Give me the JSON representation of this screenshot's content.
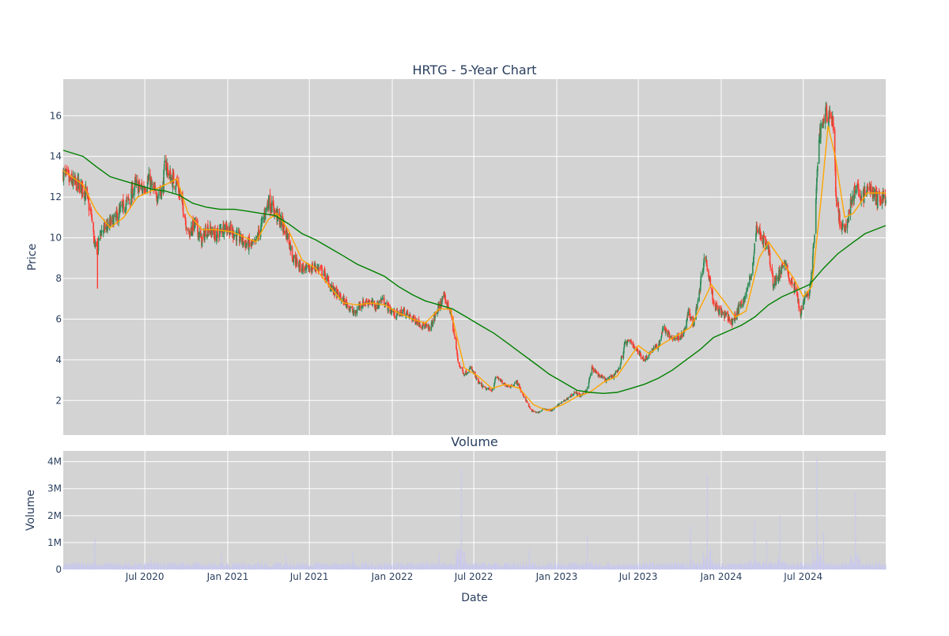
{
  "chart_data": [
    {
      "type": "candlestick",
      "title": "HRTG - 5-Year Chart",
      "xlabel": "",
      "ylabel": "Price",
      "ylim": [
        0.3,
        17.8
      ],
      "yticks": [
        2,
        4,
        6,
        8,
        10,
        12,
        14,
        16
      ],
      "grid": true,
      "up_color": "#2e8b57",
      "down_color": "#ff3b30",
      "background": "#d3d3d3",
      "price_anchors": [
        [
          "2020-01-02",
          13.2
        ],
        [
          "2020-01-15",
          12.8
        ],
        [
          "2020-02-05",
          12.6
        ],
        [
          "2020-02-20",
          12.3
        ],
        [
          "2020-03-05",
          11.0
        ],
        [
          "2020-03-12",
          9.5
        ],
        [
          "2020-03-18",
          9.4
        ],
        [
          "2020-03-25",
          10.3
        ],
        [
          "2020-04-10",
          10.6
        ],
        [
          "2020-04-25",
          10.9
        ],
        [
          "2020-05-10",
          11.4
        ],
        [
          "2020-05-25",
          11.8
        ],
        [
          "2020-06-10",
          12.6
        ],
        [
          "2020-06-25",
          12.4
        ],
        [
          "2020-07-10",
          12.8
        ],
        [
          "2020-07-25",
          12.1
        ],
        [
          "2020-08-10",
          12.4
        ],
        [
          "2020-08-15",
          13.8
        ],
        [
          "2020-08-25",
          13.0
        ],
        [
          "2020-09-10",
          12.7
        ],
        [
          "2020-09-25",
          11.4
        ],
        [
          "2020-10-05",
          10.2
        ],
        [
          "2020-10-20",
          10.7
        ],
        [
          "2020-11-05",
          9.8
        ],
        [
          "2020-11-15",
          10.5
        ],
        [
          "2020-12-05",
          10.1
        ],
        [
          "2020-12-25",
          10.6
        ],
        [
          "2021-01-10",
          10.3
        ],
        [
          "2021-02-10",
          9.7
        ],
        [
          "2021-03-01",
          9.6
        ],
        [
          "2021-03-15",
          10.5
        ],
        [
          "2021-04-01",
          11.8
        ],
        [
          "2021-04-15",
          11.3
        ],
        [
          "2021-05-01",
          10.7
        ],
        [
          "2021-05-15",
          10.0
        ],
        [
          "2021-05-25",
          9.1
        ],
        [
          "2021-06-10",
          8.6
        ],
        [
          "2021-06-25",
          8.4
        ],
        [
          "2021-07-15",
          8.6
        ],
        [
          "2021-08-01",
          8.3
        ],
        [
          "2021-08-20",
          7.5
        ],
        [
          "2021-09-10",
          7.0
        ],
        [
          "2021-09-25",
          6.7
        ],
        [
          "2021-10-10",
          6.2
        ],
        [
          "2021-10-20",
          6.7
        ],
        [
          "2021-11-10",
          6.9
        ],
        [
          "2021-11-25",
          6.6
        ],
        [
          "2021-12-10",
          7.0
        ],
        [
          "2021-12-25",
          6.5
        ],
        [
          "2022-01-10",
          6.2
        ],
        [
          "2022-01-25",
          6.4
        ],
        [
          "2022-02-10",
          6.1
        ],
        [
          "2022-02-25",
          5.9
        ],
        [
          "2022-03-10",
          5.7
        ],
        [
          "2022-03-25",
          5.5
        ],
        [
          "2022-04-10",
          6.4
        ],
        [
          "2022-04-25",
          7.1
        ],
        [
          "2022-05-10",
          6.4
        ],
        [
          "2022-05-20",
          5.0
        ],
        [
          "2022-05-28",
          3.8
        ],
        [
          "2022-06-10",
          3.3
        ],
        [
          "2022-06-25",
          3.6
        ],
        [
          "2022-07-10",
          2.9
        ],
        [
          "2022-07-25",
          2.6
        ],
        [
          "2022-08-10",
          2.5
        ],
        [
          "2022-08-20",
          3.2
        ],
        [
          "2022-09-05",
          2.8
        ],
        [
          "2022-09-20",
          2.7
        ],
        [
          "2022-10-05",
          2.9
        ],
        [
          "2022-10-15",
          2.4
        ],
        [
          "2022-10-25",
          2.0
        ],
        [
          "2022-11-05",
          1.5
        ],
        [
          "2022-11-20",
          1.4
        ],
        [
          "2022-12-05",
          1.6
        ],
        [
          "2022-12-20",
          1.5
        ],
        [
          "2023-01-05",
          1.8
        ],
        [
          "2023-01-25",
          2.1
        ],
        [
          "2023-02-10",
          2.4
        ],
        [
          "2023-02-25",
          2.2
        ],
        [
          "2023-03-10",
          2.6
        ],
        [
          "2023-03-20",
          3.6
        ],
        [
          "2023-04-01",
          3.3
        ],
        [
          "2023-04-20",
          3.0
        ],
        [
          "2023-05-05",
          3.2
        ],
        [
          "2023-05-20",
          3.6
        ],
        [
          "2023-06-01",
          4.8
        ],
        [
          "2023-06-15",
          4.9
        ],
        [
          "2023-06-30",
          4.4
        ],
        [
          "2023-07-15",
          4.0
        ],
        [
          "2023-08-01",
          4.5
        ],
        [
          "2023-08-15",
          4.7
        ],
        [
          "2023-08-25",
          5.6
        ],
        [
          "2023-09-10",
          5.1
        ],
        [
          "2023-09-25",
          5.1
        ],
        [
          "2023-10-10",
          5.3
        ],
        [
          "2023-10-20",
          6.3
        ],
        [
          "2023-11-01",
          5.8
        ],
        [
          "2023-11-15",
          7.6
        ],
        [
          "2023-11-25",
          9.2
        ],
        [
          "2023-12-05",
          8.2
        ],
        [
          "2023-12-15",
          6.8
        ],
        [
          "2024-01-01",
          6.3
        ],
        [
          "2024-01-15",
          6.1
        ],
        [
          "2024-01-25",
          5.8
        ],
        [
          "2024-02-10",
          6.6
        ],
        [
          "2024-02-25",
          7.2
        ],
        [
          "2024-03-10",
          8.5
        ],
        [
          "2024-03-20",
          10.6
        ],
        [
          "2024-04-01",
          10.0
        ],
        [
          "2024-04-15",
          9.4
        ],
        [
          "2024-04-25",
          7.8
        ],
        [
          "2024-05-10",
          8.2
        ],
        [
          "2024-05-20",
          9.0
        ],
        [
          "2024-06-01",
          7.9
        ],
        [
          "2024-06-15",
          7.4
        ],
        [
          "2024-06-25",
          6.3
        ],
        [
          "2024-07-05",
          7.2
        ],
        [
          "2024-07-15",
          7.3
        ],
        [
          "2024-07-25",
          9.8
        ],
        [
          "2024-08-05",
          15.0
        ],
        [
          "2024-08-15",
          15.9
        ],
        [
          "2024-08-25",
          16.2
        ],
        [
          "2024-09-05",
          15.8
        ],
        [
          "2024-09-12",
          12.0
        ],
        [
          "2024-09-20",
          10.8
        ],
        [
          "2024-10-01",
          10.2
        ],
        [
          "2024-10-15",
          11.8
        ],
        [
          "2024-10-25",
          12.4
        ],
        [
          "2024-11-10",
          12.0
        ],
        [
          "2024-11-25",
          12.5
        ],
        [
          "2024-12-10",
          11.9
        ],
        [
          "2024-12-31",
          12.0
        ]
      ],
      "ma_short": {
        "color": "#ffa500",
        "points": [
          [
            "2020-01-02",
            13.3
          ],
          [
            "2020-02-15",
            12.6
          ],
          [
            "2020-03-15",
            11.3
          ],
          [
            "2020-04-15",
            10.5
          ],
          [
            "2020-05-15",
            11.0
          ],
          [
            "2020-06-15",
            12.0
          ],
          [
            "2020-07-15",
            12.3
          ],
          [
            "2020-08-15",
            12.6
          ],
          [
            "2020-09-10",
            12.9
          ],
          [
            "2020-10-05",
            11.2
          ],
          [
            "2020-11-05",
            10.4
          ],
          [
            "2020-12-05",
            10.4
          ],
          [
            "2021-01-10",
            10.3
          ],
          [
            "2021-02-10",
            10.0
          ],
          [
            "2021-03-05",
            9.8
          ],
          [
            "2021-04-01",
            10.9
          ],
          [
            "2021-04-20",
            11.2
          ],
          [
            "2021-05-15",
            10.4
          ],
          [
            "2021-06-15",
            8.9
          ],
          [
            "2021-07-15",
            8.5
          ],
          [
            "2021-08-15",
            7.6
          ],
          [
            "2021-09-15",
            6.8
          ],
          [
            "2021-10-15",
            6.7
          ],
          [
            "2021-11-15",
            6.8
          ],
          [
            "2021-12-15",
            6.7
          ],
          [
            "2022-01-15",
            6.3
          ],
          [
            "2022-02-15",
            6.0
          ],
          [
            "2022-03-15",
            5.8
          ],
          [
            "2022-04-15",
            6.5
          ],
          [
            "2022-05-10",
            6.5
          ],
          [
            "2022-06-10",
            3.6
          ],
          [
            "2022-07-10",
            3.2
          ],
          [
            "2022-08-10",
            2.6
          ],
          [
            "2022-09-10",
            2.8
          ],
          [
            "2022-10-10",
            2.6
          ],
          [
            "2022-11-10",
            1.8
          ],
          [
            "2022-12-10",
            1.5
          ],
          [
            "2023-01-15",
            1.8
          ],
          [
            "2023-02-15",
            2.2
          ],
          [
            "2023-03-15",
            2.4
          ],
          [
            "2023-04-15",
            2.9
          ],
          [
            "2023-05-15",
            3.2
          ],
          [
            "2023-06-15",
            4.2
          ],
          [
            "2023-07-01",
            4.7
          ],
          [
            "2023-07-25",
            4.3
          ],
          [
            "2023-08-25",
            4.8
          ],
          [
            "2023-09-25",
            5.2
          ],
          [
            "2023-10-25",
            5.6
          ],
          [
            "2023-11-25",
            7.0
          ],
          [
            "2023-12-10",
            7.7
          ],
          [
            "2024-01-10",
            6.8
          ],
          [
            "2024-02-01",
            6.1
          ],
          [
            "2024-02-25",
            6.4
          ],
          [
            "2024-03-25",
            9.0
          ],
          [
            "2024-04-15",
            9.8
          ],
          [
            "2024-05-10",
            9.0
          ],
          [
            "2024-06-10",
            8.0
          ],
          [
            "2024-07-01",
            7.1
          ],
          [
            "2024-07-20",
            7.6
          ],
          [
            "2024-08-10",
            12.0
          ],
          [
            "2024-08-25",
            15.5
          ],
          [
            "2024-09-10",
            14.0
          ],
          [
            "2024-10-01",
            11.0
          ],
          [
            "2024-10-20",
            11.2
          ],
          [
            "2024-11-20",
            12.2
          ],
          [
            "2024-12-31",
            12.2
          ]
        ]
      },
      "ma_long": {
        "color": "#008000",
        "points": [
          [
            "2020-01-02",
            14.3
          ],
          [
            "2020-02-15",
            14.0
          ],
          [
            "2020-03-15",
            13.5
          ],
          [
            "2020-04-15",
            13.0
          ],
          [
            "2020-05-15",
            12.8
          ],
          [
            "2020-06-15",
            12.6
          ],
          [
            "2020-07-15",
            12.4
          ],
          [
            "2020-08-15",
            12.3
          ],
          [
            "2020-09-15",
            12.1
          ],
          [
            "2020-10-15",
            11.7
          ],
          [
            "2020-11-15",
            11.5
          ],
          [
            "2020-12-15",
            11.4
          ],
          [
            "2021-01-15",
            11.4
          ],
          [
            "2021-02-15",
            11.3
          ],
          [
            "2021-03-15",
            11.2
          ],
          [
            "2021-04-15",
            11.1
          ],
          [
            "2021-05-15",
            10.7
          ],
          [
            "2021-06-15",
            10.2
          ],
          [
            "2021-07-15",
            9.9
          ],
          [
            "2021-08-15",
            9.5
          ],
          [
            "2021-09-15",
            9.1
          ],
          [
            "2021-10-15",
            8.7
          ],
          [
            "2021-11-15",
            8.4
          ],
          [
            "2021-12-15",
            8.1
          ],
          [
            "2022-01-15",
            7.6
          ],
          [
            "2022-02-15",
            7.2
          ],
          [
            "2022-03-15",
            6.9
          ],
          [
            "2022-04-15",
            6.7
          ],
          [
            "2022-05-15",
            6.5
          ],
          [
            "2022-06-15",
            6.1
          ],
          [
            "2022-07-15",
            5.7
          ],
          [
            "2022-08-15",
            5.3
          ],
          [
            "2022-09-15",
            4.8
          ],
          [
            "2022-10-15",
            4.3
          ],
          [
            "2022-11-15",
            3.8
          ],
          [
            "2022-12-15",
            3.3
          ],
          [
            "2023-01-15",
            2.9
          ],
          [
            "2023-02-15",
            2.5
          ],
          [
            "2023-03-15",
            2.4
          ],
          [
            "2023-04-15",
            2.35
          ],
          [
            "2023-05-15",
            2.4
          ],
          [
            "2023-06-15",
            2.6
          ],
          [
            "2023-07-15",
            2.8
          ],
          [
            "2023-08-15",
            3.1
          ],
          [
            "2023-09-15",
            3.5
          ],
          [
            "2023-10-15",
            4.0
          ],
          [
            "2023-11-15",
            4.5
          ],
          [
            "2023-12-15",
            5.1
          ],
          [
            "2024-01-15",
            5.4
          ],
          [
            "2024-02-15",
            5.7
          ],
          [
            "2024-03-15",
            6.1
          ],
          [
            "2024-04-15",
            6.7
          ],
          [
            "2024-05-15",
            7.1
          ],
          [
            "2024-06-15",
            7.4
          ],
          [
            "2024-07-15",
            7.7
          ],
          [
            "2024-08-15",
            8.5
          ],
          [
            "2024-09-15",
            9.2
          ],
          [
            "2024-10-15",
            9.7
          ],
          [
            "2024-11-15",
            10.2
          ],
          [
            "2024-12-31",
            10.6
          ]
        ]
      }
    },
    {
      "type": "bar",
      "title": "Volume",
      "xlabel": "Date",
      "ylabel": "Volume",
      "ylim": [
        0,
        4400000
      ],
      "yticks": [
        0,
        1000000,
        2000000,
        3000000,
        4000000
      ],
      "ytick_labels": [
        "0",
        "1M",
        "2M",
        "3M",
        "4M"
      ],
      "bar_color": "#c8c8ee",
      "baseline_volume": 180000,
      "spikes": [
        [
          "2020-03-12",
          1200000
        ],
        [
          "2020-07-15",
          400000
        ],
        [
          "2020-12-18",
          600000
        ],
        [
          "2021-05-10",
          550000
        ],
        [
          "2021-10-05",
          650000
        ],
        [
          "2022-04-15",
          600000
        ],
        [
          "2022-06-03",
          3750000
        ],
        [
          "2022-07-10",
          650000
        ],
        [
          "2022-11-01",
          750000
        ],
        [
          "2023-03-10",
          1250000
        ],
        [
          "2023-10-25",
          1600000
        ],
        [
          "2023-12-01",
          3500000
        ],
        [
          "2024-03-15",
          1800000
        ],
        [
          "2024-04-10",
          1100000
        ],
        [
          "2024-05-10",
          2000000
        ],
        [
          "2024-07-31",
          4150000
        ],
        [
          "2024-08-15",
          1400000
        ],
        [
          "2024-10-25",
          2850000
        ],
        [
          "2024-11-10",
          900000
        ]
      ],
      "x_tick_dates": [
        "2020-07-01",
        "2021-01-01",
        "2021-07-01",
        "2022-01-01",
        "2022-07-01",
        "2023-01-01",
        "2023-07-01",
        "2024-01-01",
        "2024-07-01"
      ],
      "x_tick_labels": [
        "Jul 2020",
        "Jan 2021",
        "Jul 2021",
        "Jan 2022",
        "Jul 2022",
        "Jan 2023",
        "Jul 2023",
        "Jan 2024",
        "Jul 2024"
      ],
      "x_range": [
        "2020-01-02",
        "2024-12-31"
      ]
    }
  ]
}
